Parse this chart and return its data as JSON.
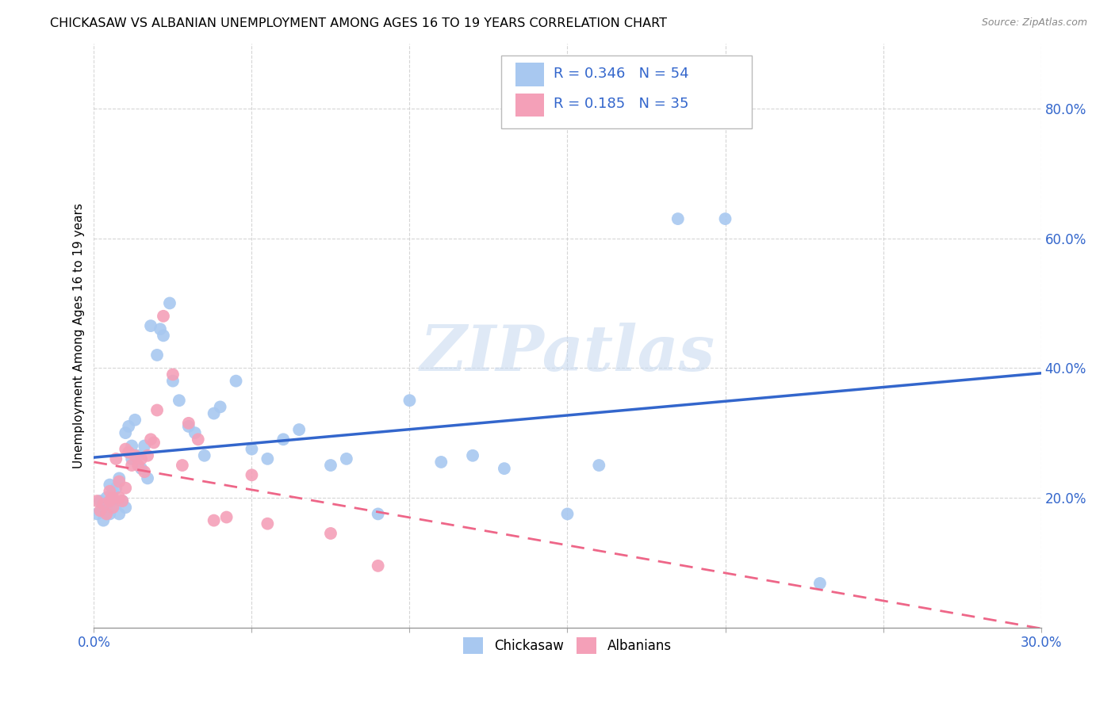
{
  "title": "CHICKASAW VS ALBANIAN UNEMPLOYMENT AMONG AGES 16 TO 19 YEARS CORRELATION CHART",
  "source": "Source: ZipAtlas.com",
  "ylabel": "Unemployment Among Ages 16 to 19 years",
  "yticks_vals": [
    0.2,
    0.4,
    0.6,
    0.8
  ],
  "yticks_labels": [
    "20.0%",
    "40.0%",
    "60.0%",
    "80.0%"
  ],
  "xtick_left": "0.0%",
  "xtick_right": "30.0%",
  "chickasaw_R": "0.346",
  "chickasaw_N": "54",
  "albanian_R": "0.185",
  "albanian_N": "35",
  "chickasaw_color": "#a8c8f0",
  "albanian_color": "#f4a0b8",
  "chickasaw_line_color": "#3366cc",
  "albanian_line_color": "#ee6688",
  "legend_label1": "Chickasaw",
  "legend_label2": "Albanians",
  "watermark": "ZIPatlas",
  "xlim": [
    0.0,
    0.3
  ],
  "ylim": [
    0.0,
    0.9
  ],
  "chickasaw_x": [
    0.001,
    0.002,
    0.003,
    0.003,
    0.004,
    0.004,
    0.005,
    0.005,
    0.006,
    0.006,
    0.007,
    0.007,
    0.008,
    0.008,
    0.009,
    0.01,
    0.01,
    0.011,
    0.012,
    0.012,
    0.013,
    0.014,
    0.015,
    0.016,
    0.017,
    0.018,
    0.02,
    0.021,
    0.022,
    0.024,
    0.025,
    0.027,
    0.03,
    0.032,
    0.035,
    0.038,
    0.04,
    0.045,
    0.05,
    0.055,
    0.06,
    0.065,
    0.075,
    0.08,
    0.09,
    0.1,
    0.11,
    0.12,
    0.13,
    0.15,
    0.16,
    0.185,
    0.2,
    0.23
  ],
  "chickasaw_y": [
    0.175,
    0.195,
    0.185,
    0.165,
    0.18,
    0.2,
    0.175,
    0.22,
    0.195,
    0.21,
    0.19,
    0.215,
    0.175,
    0.23,
    0.195,
    0.185,
    0.3,
    0.31,
    0.28,
    0.26,
    0.32,
    0.265,
    0.245,
    0.28,
    0.23,
    0.465,
    0.42,
    0.46,
    0.45,
    0.5,
    0.38,
    0.35,
    0.31,
    0.3,
    0.265,
    0.33,
    0.34,
    0.38,
    0.275,
    0.26,
    0.29,
    0.305,
    0.25,
    0.26,
    0.175,
    0.35,
    0.255,
    0.265,
    0.245,
    0.175,
    0.25,
    0.63,
    0.63,
    0.068
  ],
  "albanian_x": [
    0.001,
    0.002,
    0.003,
    0.004,
    0.005,
    0.005,
    0.006,
    0.006,
    0.007,
    0.008,
    0.008,
    0.009,
    0.01,
    0.01,
    0.011,
    0.012,
    0.013,
    0.014,
    0.015,
    0.016,
    0.017,
    0.018,
    0.019,
    0.02,
    0.022,
    0.025,
    0.028,
    0.03,
    0.033,
    0.038,
    0.042,
    0.05,
    0.055,
    0.075,
    0.09
  ],
  "albanian_y": [
    0.195,
    0.18,
    0.19,
    0.175,
    0.195,
    0.21,
    0.2,
    0.185,
    0.26,
    0.2,
    0.225,
    0.195,
    0.215,
    0.275,
    0.27,
    0.25,
    0.265,
    0.25,
    0.26,
    0.24,
    0.265,
    0.29,
    0.285,
    0.335,
    0.48,
    0.39,
    0.25,
    0.315,
    0.29,
    0.165,
    0.17,
    0.235,
    0.16,
    0.145,
    0.095
  ]
}
